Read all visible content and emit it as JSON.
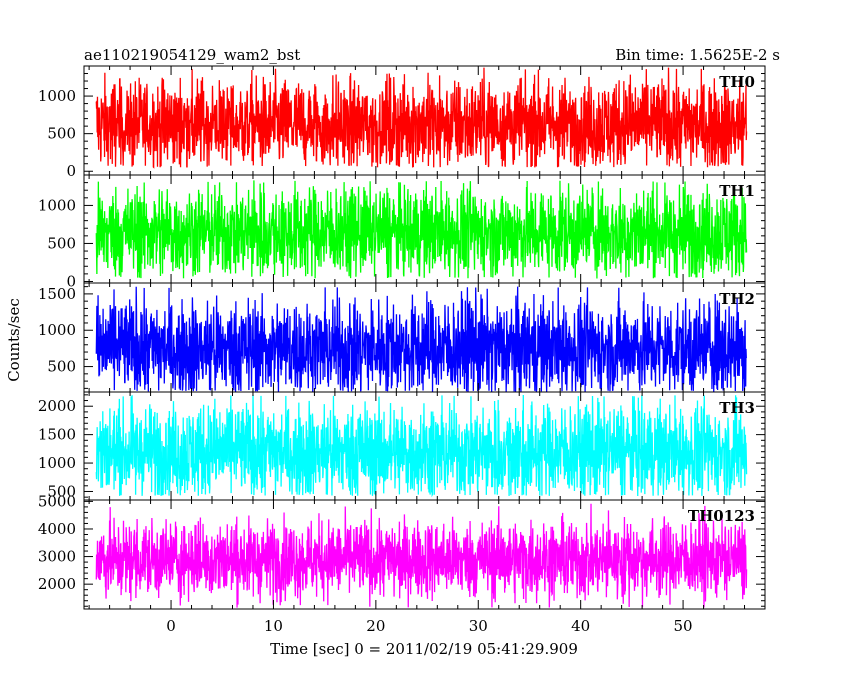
{
  "header": {
    "title": "ae110219054129_wam2_bst",
    "bin_time": "Bin time: 1.5625E-2 s"
  },
  "chart_data": {
    "type": "line",
    "title": "ae110219054129_wam2_bst",
    "subtitle": "Bin time: 1.5625E-2 s",
    "xlabel": "Time [sec] 0 = 2011/02/19 05:41:29.909",
    "ylabel": "Counts/sec",
    "xlim": [
      -8.5,
      58
    ],
    "x_ticks": [
      0,
      10,
      20,
      30,
      40,
      50
    ],
    "x_data_range": [
      -7.3,
      56.2
    ],
    "grid": false,
    "panels": [
      {
        "name": "TH0",
        "color": "#ff0000",
        "ylim": [
          -50,
          1400
        ],
        "y_ticks": [
          0,
          500,
          1000
        ],
        "y_min": 50,
        "y_max": 1380,
        "y_center": 620,
        "y_spread": 300
      },
      {
        "name": "TH1",
        "color": "#00ff00",
        "ylim": [
          -20,
          1400
        ],
        "y_ticks": [
          0,
          500,
          1000
        ],
        "y_min": 40,
        "y_max": 1330,
        "y_center": 650,
        "y_spread": 300
      },
      {
        "name": "TH2",
        "color": "#0000ff",
        "ylim": [
          150,
          1650
        ],
        "y_ticks": [
          500,
          1000,
          1500
        ],
        "y_min": 150,
        "y_max": 1600,
        "y_center": 750,
        "y_spread": 330
      },
      {
        "name": "TH3",
        "color": "#00ffff",
        "ylim": [
          350,
          2250
        ],
        "y_ticks": [
          500,
          1000,
          1500,
          2000
        ],
        "y_min": 420,
        "y_max": 2200,
        "y_center": 1200,
        "y_spread": 420
      },
      {
        "name": "TH0123",
        "color": "#ff00ff",
        "ylim": [
          1100,
          5050
        ],
        "y_ticks": [
          2000,
          3000,
          4000,
          5000
        ],
        "y_min": 1150,
        "y_max": 4950,
        "y_center": 2900,
        "y_spread": 700
      }
    ]
  }
}
